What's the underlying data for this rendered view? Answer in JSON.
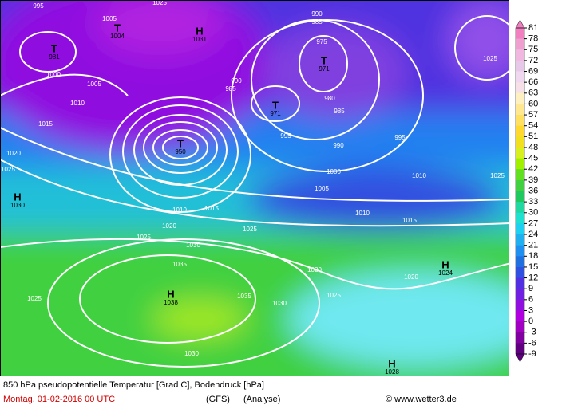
{
  "caption": {
    "title": "850 hPa pseudopotentielle Temperatur [Grad C], Bodendruck [hPa]",
    "date": "Montag, 01-02-2016  00 UTC",
    "model": "(GFS)",
    "run": "(Analyse)",
    "credit": "© www.wetter3.de"
  },
  "colorbar": {
    "ticks": [
      81,
      78,
      75,
      72,
      69,
      66,
      63,
      60,
      57,
      54,
      51,
      48,
      45,
      42,
      39,
      36,
      33,
      30,
      27,
      24,
      21,
      18,
      15,
      12,
      9,
      6,
      3,
      0,
      -3,
      -6,
      -9
    ],
    "colors": [
      "#f080c0",
      "#f0a0d0",
      "#f0b8e0",
      "#e8c8e8",
      "#f0d8f0",
      "#f8e0e8",
      "#fff0c0",
      "#ffe890",
      "#ffe060",
      "#ffd830",
      "#f0e020",
      "#d8f020",
      "#a0f000",
      "#60e020",
      "#40d040",
      "#20c860",
      "#20d8a0",
      "#20e0d0",
      "#20d0f0",
      "#20b0f0",
      "#2090f0",
      "#2070e0",
      "#3050e0",
      "#5030e0",
      "#7020e0",
      "#9010e0",
      "#b000e0",
      "#a000c0",
      "#8000a0",
      "#600080"
    ]
  },
  "isobar_labels": [
    995,
    1005,
    1000,
    1005,
    1010,
    1015,
    1020,
    1025,
    1025,
    1020,
    1015,
    1010,
    1035,
    1030,
    1025,
    1020,
    1025,
    1030,
    1035,
    1030,
    1025,
    1010,
    1005,
    1000,
    995,
    990,
    985,
    980,
    975,
    990,
    985,
    990,
    985,
    995,
    1010,
    1015,
    1020,
    1025,
    1025,
    1025
  ],
  "centers": [
    {
      "symbol": "T",
      "value": 1004
    },
    {
      "symbol": "T",
      "value": 981
    },
    {
      "symbol": "T",
      "value": 950
    },
    {
      "symbol": "T",
      "value": 971
    },
    {
      "symbol": "T",
      "value": 971
    },
    {
      "symbol": "H",
      "value": 1030
    },
    {
      "symbol": "H",
      "value": 1038
    },
    {
      "symbol": "H",
      "value": 1024
    },
    {
      "symbol": "H",
      "value": 1028
    },
    {
      "symbol": "H",
      "value": 1031
    }
  ]
}
